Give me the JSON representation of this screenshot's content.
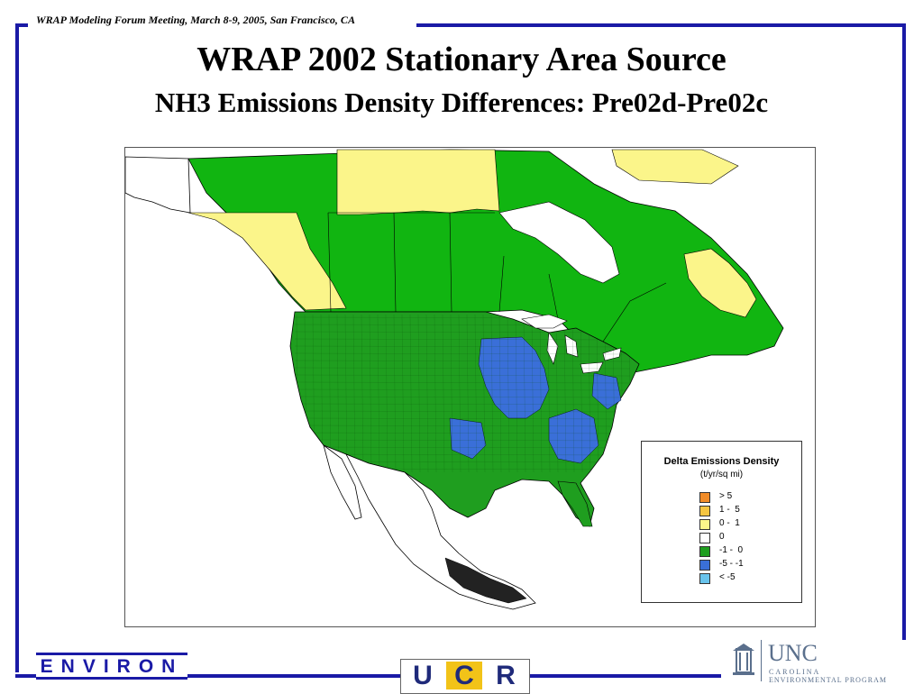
{
  "header": "WRAP Modeling Forum Meeting, March 8-9, 2005, San Francisco, CA",
  "title": "WRAP 2002 Stationary Area Source",
  "subtitle": "NH3 Emissions Density Differences: Pre02d-Pre02c",
  "legend": {
    "title": "Delta Emissions Density",
    "units": "(t/yr/sq mi)",
    "items": [
      {
        "label": "> 5",
        "color": "#f28c28"
      },
      {
        "label": "1 -  5",
        "color": "#f5c542"
      },
      {
        "label": "0 -  1",
        "color": "#fbf58a"
      },
      {
        "label": "0",
        "color": "#ffffff"
      },
      {
        "label": "-1 -  0",
        "color": "#1f9e1f"
      },
      {
        "label": "-5 - -1",
        "color": "#3a6fd8"
      },
      {
        "label": "< -5",
        "color": "#68c3ec"
      }
    ]
  },
  "map_colors": {
    "water": "#ffffff",
    "us_counties": "#1f9e1f",
    "canada_green": "#11b511",
    "canada_yellow": "#fbf58a",
    "blue_counties": "#3a6fd8",
    "mexico": "#ffffff",
    "border": "#000000"
  },
  "logos": {
    "environ": "ENVIRON",
    "ucr": [
      "U",
      "C",
      "R"
    ],
    "unc_big": "UNC",
    "unc_small1": "CAROLINA",
    "unc_small2": "ENVIRONMENTAL PROGRAM"
  }
}
